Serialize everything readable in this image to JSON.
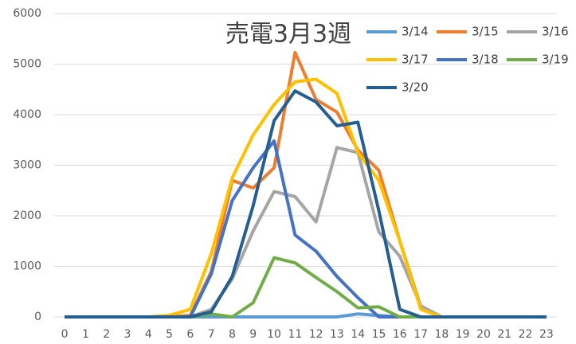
{
  "chart_data": {
    "type": "line",
    "title": "売電3月3週",
    "categories": [
      "0",
      "1",
      "2",
      "3",
      "4",
      "5",
      "6",
      "7",
      "8",
      "9",
      "10",
      "11",
      "12",
      "13",
      "14",
      "15",
      "16",
      "17",
      "18",
      "19",
      "20",
      "21",
      "22",
      "23"
    ],
    "ylim": [
      0,
      6000
    ],
    "yticks": [
      0,
      1000,
      2000,
      3000,
      4000,
      5000,
      6000
    ],
    "grid": true,
    "legend": "top-right",
    "series": [
      {
        "name": "3/14",
        "color": "#5b9bd5",
        "values": [
          0,
          0,
          0,
          0,
          0,
          0,
          0,
          0,
          0,
          0,
          0,
          0,
          0,
          0,
          60,
          30,
          0,
          0,
          0,
          0,
          0,
          0,
          0,
          0
        ]
      },
      {
        "name": "3/15",
        "color": "#ed7d31",
        "values": [
          0,
          0,
          0,
          0,
          0,
          0,
          30,
          900,
          2700,
          2550,
          2950,
          5230,
          4300,
          4050,
          3300,
          2900,
          1500,
          200,
          0,
          0,
          0,
          0,
          0,
          0
        ]
      },
      {
        "name": "3/16",
        "color": "#a5a5a5",
        "values": [
          0,
          0,
          0,
          0,
          0,
          0,
          0,
          150,
          750,
          1700,
          2480,
          2380,
          1880,
          3350,
          3250,
          1680,
          1200,
          220,
          0,
          0,
          0,
          0,
          0,
          0
        ]
      },
      {
        "name": "3/17",
        "color": "#ffc000",
        "values": [
          0,
          0,
          0,
          0,
          0,
          30,
          150,
          1250,
          2750,
          3600,
          4200,
          4650,
          4700,
          4420,
          3250,
          2700,
          1500,
          150,
          0,
          0,
          0,
          0,
          0,
          0
        ]
      },
      {
        "name": "3/18",
        "color": "#4472c4",
        "values": [
          0,
          0,
          0,
          0,
          0,
          0,
          0,
          850,
          2300,
          2950,
          3480,
          1620,
          1300,
          800,
          380,
          0,
          0,
          0,
          0,
          0,
          0,
          0,
          0,
          0
        ]
      },
      {
        "name": "3/19",
        "color": "#70ad47",
        "values": [
          0,
          0,
          0,
          0,
          0,
          0,
          0,
          60,
          0,
          280,
          1170,
          1070,
          780,
          500,
          180,
          200,
          0,
          0,
          0,
          0,
          0,
          0,
          0,
          0
        ]
      },
      {
        "name": "3/20",
        "color": "#255e91",
        "values": [
          0,
          0,
          0,
          0,
          0,
          0,
          0,
          100,
          800,
          2200,
          3880,
          4470,
          4250,
          3780,
          3850,
          2100,
          150,
          0,
          0,
          0,
          0,
          0,
          0,
          0
        ]
      }
    ]
  }
}
